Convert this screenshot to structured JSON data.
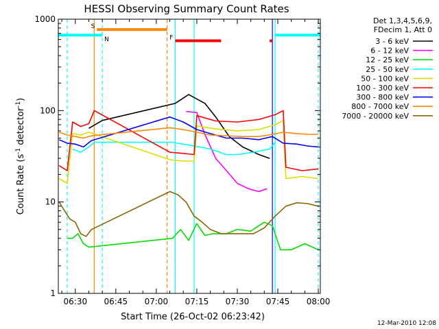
{
  "chart_data": {
    "type": "line",
    "title": "HESSI Observing Summary Count Rates",
    "xlabel": "Start Time (26-Oct-02 06:23:42)",
    "ylabel_main": "Count Rate (s",
    "ylabel_sup1": "-1",
    "ylabel_mid": " detector",
    "ylabel_sup2": "-1",
    "ylabel_end": ")",
    "yscale": "log",
    "ylim": [
      1,
      1000
    ],
    "xlim": [
      "06:23:42",
      "08:00:45"
    ],
    "x_ticks": [
      "06:30",
      "06:45",
      "07:00",
      "07:15",
      "07:30",
      "07:45",
      "08:00"
    ],
    "y_ticks": [
      "1",
      "10",
      "100",
      "1000"
    ],
    "legend_header": [
      "Det 1,3,4,5,6,9,",
      "FDecim 1, Att 0"
    ],
    "series": [
      {
        "name": "3 - 6 keV",
        "color": "#000000",
        "points": [
          [
            "06:35",
            64
          ],
          [
            "06:40",
            78
          ],
          [
            "07:07",
            120
          ],
          [
            "07:12",
            150
          ],
          [
            "07:18",
            120
          ],
          [
            "07:22",
            85
          ],
          [
            "07:27",
            52
          ],
          [
            "07:32",
            40
          ],
          [
            "07:38",
            33
          ],
          [
            "07:42",
            30
          ]
        ]
      },
      {
        "name": "6 - 12 keV",
        "color": "#ff00ff",
        "points": [
          [
            "07:11",
            98
          ],
          [
            "07:15",
            95
          ],
          [
            "07:18",
            55
          ],
          [
            "07:22",
            30
          ],
          [
            "07:26",
            22
          ],
          [
            "07:30",
            16
          ],
          [
            "07:34",
            14
          ],
          [
            "07:38",
            13
          ],
          [
            "07:41",
            14
          ]
        ]
      },
      {
        "name": "12 - 25 keV",
        "color": "#00dd00",
        "points": [
          [
            "06:27",
            4
          ],
          [
            "06:29",
            4
          ],
          [
            "06:31",
            4.5
          ],
          [
            "06:33",
            3.5
          ],
          [
            "06:35",
            3.2
          ],
          [
            "07:06",
            4
          ],
          [
            "07:09",
            5
          ],
          [
            "07:12",
            3.8
          ],
          [
            "07:15",
            5.8
          ],
          [
            "07:18",
            4.3
          ],
          [
            "07:21",
            4.5
          ],
          [
            "07:26",
            4.5
          ],
          [
            "07:30",
            5
          ],
          [
            "07:35",
            4.8
          ],
          [
            "07:40",
            6
          ],
          [
            "07:43",
            5.5
          ],
          [
            "07:46",
            3
          ],
          [
            "07:50",
            3
          ],
          [
            "07:55",
            3.5
          ],
          [
            "08:00",
            3
          ]
        ]
      },
      {
        "name": "25 - 50 keV",
        "color": "#00ffff",
        "points": [
          [
            "06:29",
            38
          ],
          [
            "06:32",
            35
          ],
          [
            "06:35",
            40
          ],
          [
            "06:37",
            45
          ],
          [
            "07:06",
            45
          ],
          [
            "07:12",
            42
          ],
          [
            "07:16",
            40
          ],
          [
            "07:20",
            38
          ],
          [
            "07:26",
            33
          ],
          [
            "07:30",
            33
          ],
          [
            "07:36",
            35
          ],
          [
            "07:42",
            38
          ],
          [
            "07:44",
            45
          ]
        ]
      },
      {
        "name": "50 - 100 keV",
        "color": "#dddd00",
        "points": [
          [
            "06:24",
            18
          ],
          [
            "06:27",
            16
          ],
          [
            "06:29",
            56
          ],
          [
            "06:32",
            54
          ],
          [
            "06:35",
            58
          ],
          [
            "07:05",
            29
          ],
          [
            "07:10",
            28
          ],
          [
            "07:14",
            28
          ],
          [
            "07:15",
            68
          ],
          [
            "07:22",
            63
          ],
          [
            "07:30",
            60
          ],
          [
            "07:38",
            62
          ],
          [
            "07:44",
            70
          ],
          [
            "07:47",
            78
          ],
          [
            "07:48",
            18
          ],
          [
            "07:54",
            19
          ],
          [
            "08:00",
            18
          ]
        ]
      },
      {
        "name": "100 - 300 keV",
        "color": "#ff0000",
        "points": [
          [
            "06:24",
            25
          ],
          [
            "06:27",
            22
          ],
          [
            "06:29",
            75
          ],
          [
            "06:32",
            67
          ],
          [
            "06:35",
            72
          ],
          [
            "06:37",
            100
          ],
          [
            "07:05",
            35
          ],
          [
            "07:10",
            34
          ],
          [
            "07:14",
            33
          ],
          [
            "07:15",
            88
          ],
          [
            "07:22",
            77
          ],
          [
            "07:30",
            75
          ],
          [
            "07:38",
            80
          ],
          [
            "07:44",
            90
          ],
          [
            "07:47",
            100
          ],
          [
            "07:48",
            24
          ],
          [
            "07:54",
            22
          ],
          [
            "08:00",
            23
          ]
        ]
      },
      {
        "name": "300 - 800 keV",
        "color": "#0000ff",
        "points": [
          [
            "06:24",
            48
          ],
          [
            "06:27",
            44
          ],
          [
            "06:30",
            43
          ],
          [
            "06:33",
            40
          ],
          [
            "06:36",
            47
          ],
          [
            "07:05",
            85
          ],
          [
            "07:10",
            75
          ],
          [
            "07:15",
            62
          ],
          [
            "07:20",
            56
          ],
          [
            "07:26",
            50
          ],
          [
            "07:32",
            50
          ],
          [
            "07:38",
            48
          ],
          [
            "07:43",
            52
          ],
          [
            "07:47",
            44
          ],
          [
            "07:52",
            43
          ],
          [
            "07:56",
            41
          ],
          [
            "08:00",
            40
          ]
        ]
      },
      {
        "name": "800 - 7000 keV",
        "color": "#ff8800",
        "points": [
          [
            "06:24",
            58
          ],
          [
            "06:27",
            54
          ],
          [
            "06:30",
            52
          ],
          [
            "06:33",
            50
          ],
          [
            "06:36",
            53
          ],
          [
            "07:05",
            65
          ],
          [
            "07:10",
            62
          ],
          [
            "07:15",
            58
          ],
          [
            "07:20",
            54
          ],
          [
            "07:26",
            53
          ],
          [
            "07:32",
            52
          ],
          [
            "07:38",
            52
          ],
          [
            "07:43",
            55
          ],
          [
            "07:47",
            58
          ],
          [
            "07:52",
            56
          ],
          [
            "07:56",
            55
          ],
          [
            "08:00",
            55
          ]
        ]
      },
      {
        "name": "7000 - 20000 keV",
        "color": "#886600",
        "points": [
          [
            "06:24",
            10
          ],
          [
            "06:26",
            8
          ],
          [
            "06:28",
            6.5
          ],
          [
            "06:30",
            6
          ],
          [
            "06:32",
            4.5
          ],
          [
            "06:34",
            4.2
          ],
          [
            "06:36",
            5
          ],
          [
            "07:05",
            13
          ],
          [
            "07:08",
            12
          ],
          [
            "07:11",
            10
          ],
          [
            "07:14",
            7
          ],
          [
            "07:17",
            6
          ],
          [
            "07:20",
            5
          ],
          [
            "07:24",
            4.5
          ],
          [
            "07:30",
            4.5
          ],
          [
            "07:36",
            4.5
          ],
          [
            "07:40",
            5.2
          ],
          [
            "07:44",
            7
          ],
          [
            "07:48",
            9
          ],
          [
            "07:52",
            9.8
          ],
          [
            "07:56",
            9.6
          ],
          [
            "08:00",
            9
          ]
        ]
      }
    ],
    "state_bars": [
      {
        "label": "S",
        "color": "#ff8800",
        "start": "06:38",
        "end": "07:04",
        "level": 770
      },
      {
        "label": "F",
        "color": "#ff0000",
        "start": "07:07",
        "end": "07:24",
        "level": 580
      },
      {
        "label": "",
        "color": "#ff0000",
        "start": "07:42",
        "end": "07:43",
        "level": 580
      },
      {
        "label": "N",
        "color": "#00ffff",
        "start": "06:23:42",
        "end": "06:40",
        "level": 670
      },
      {
        "label": "",
        "color": "#00ffff",
        "start": "07:44",
        "end": "08:00:45",
        "level": 670
      }
    ],
    "vertical_markers": [
      {
        "time": "06:27",
        "color": "#00ffff",
        "style": "dashed"
      },
      {
        "time": "06:37",
        "color": "#ff8800",
        "style": "solid"
      },
      {
        "time": "06:40",
        "color": "#00ffff",
        "style": "dashed"
      },
      {
        "time": "07:04",
        "color": "#ff8800",
        "style": "dashed"
      },
      {
        "time": "07:07",
        "color": "#00ffff",
        "style": "solid"
      },
      {
        "time": "07:14",
        "color": "#00ffff",
        "style": "solid"
      },
      {
        "time": "07:43",
        "color": "#0000ff",
        "style": "solid"
      },
      {
        "time": "07:44",
        "color": "#00ffff",
        "style": "solid"
      },
      {
        "time": "08:00",
        "color": "#00ffff",
        "style": "dashed"
      }
    ],
    "footer_date": "12-Mar-2010 12:08"
  }
}
